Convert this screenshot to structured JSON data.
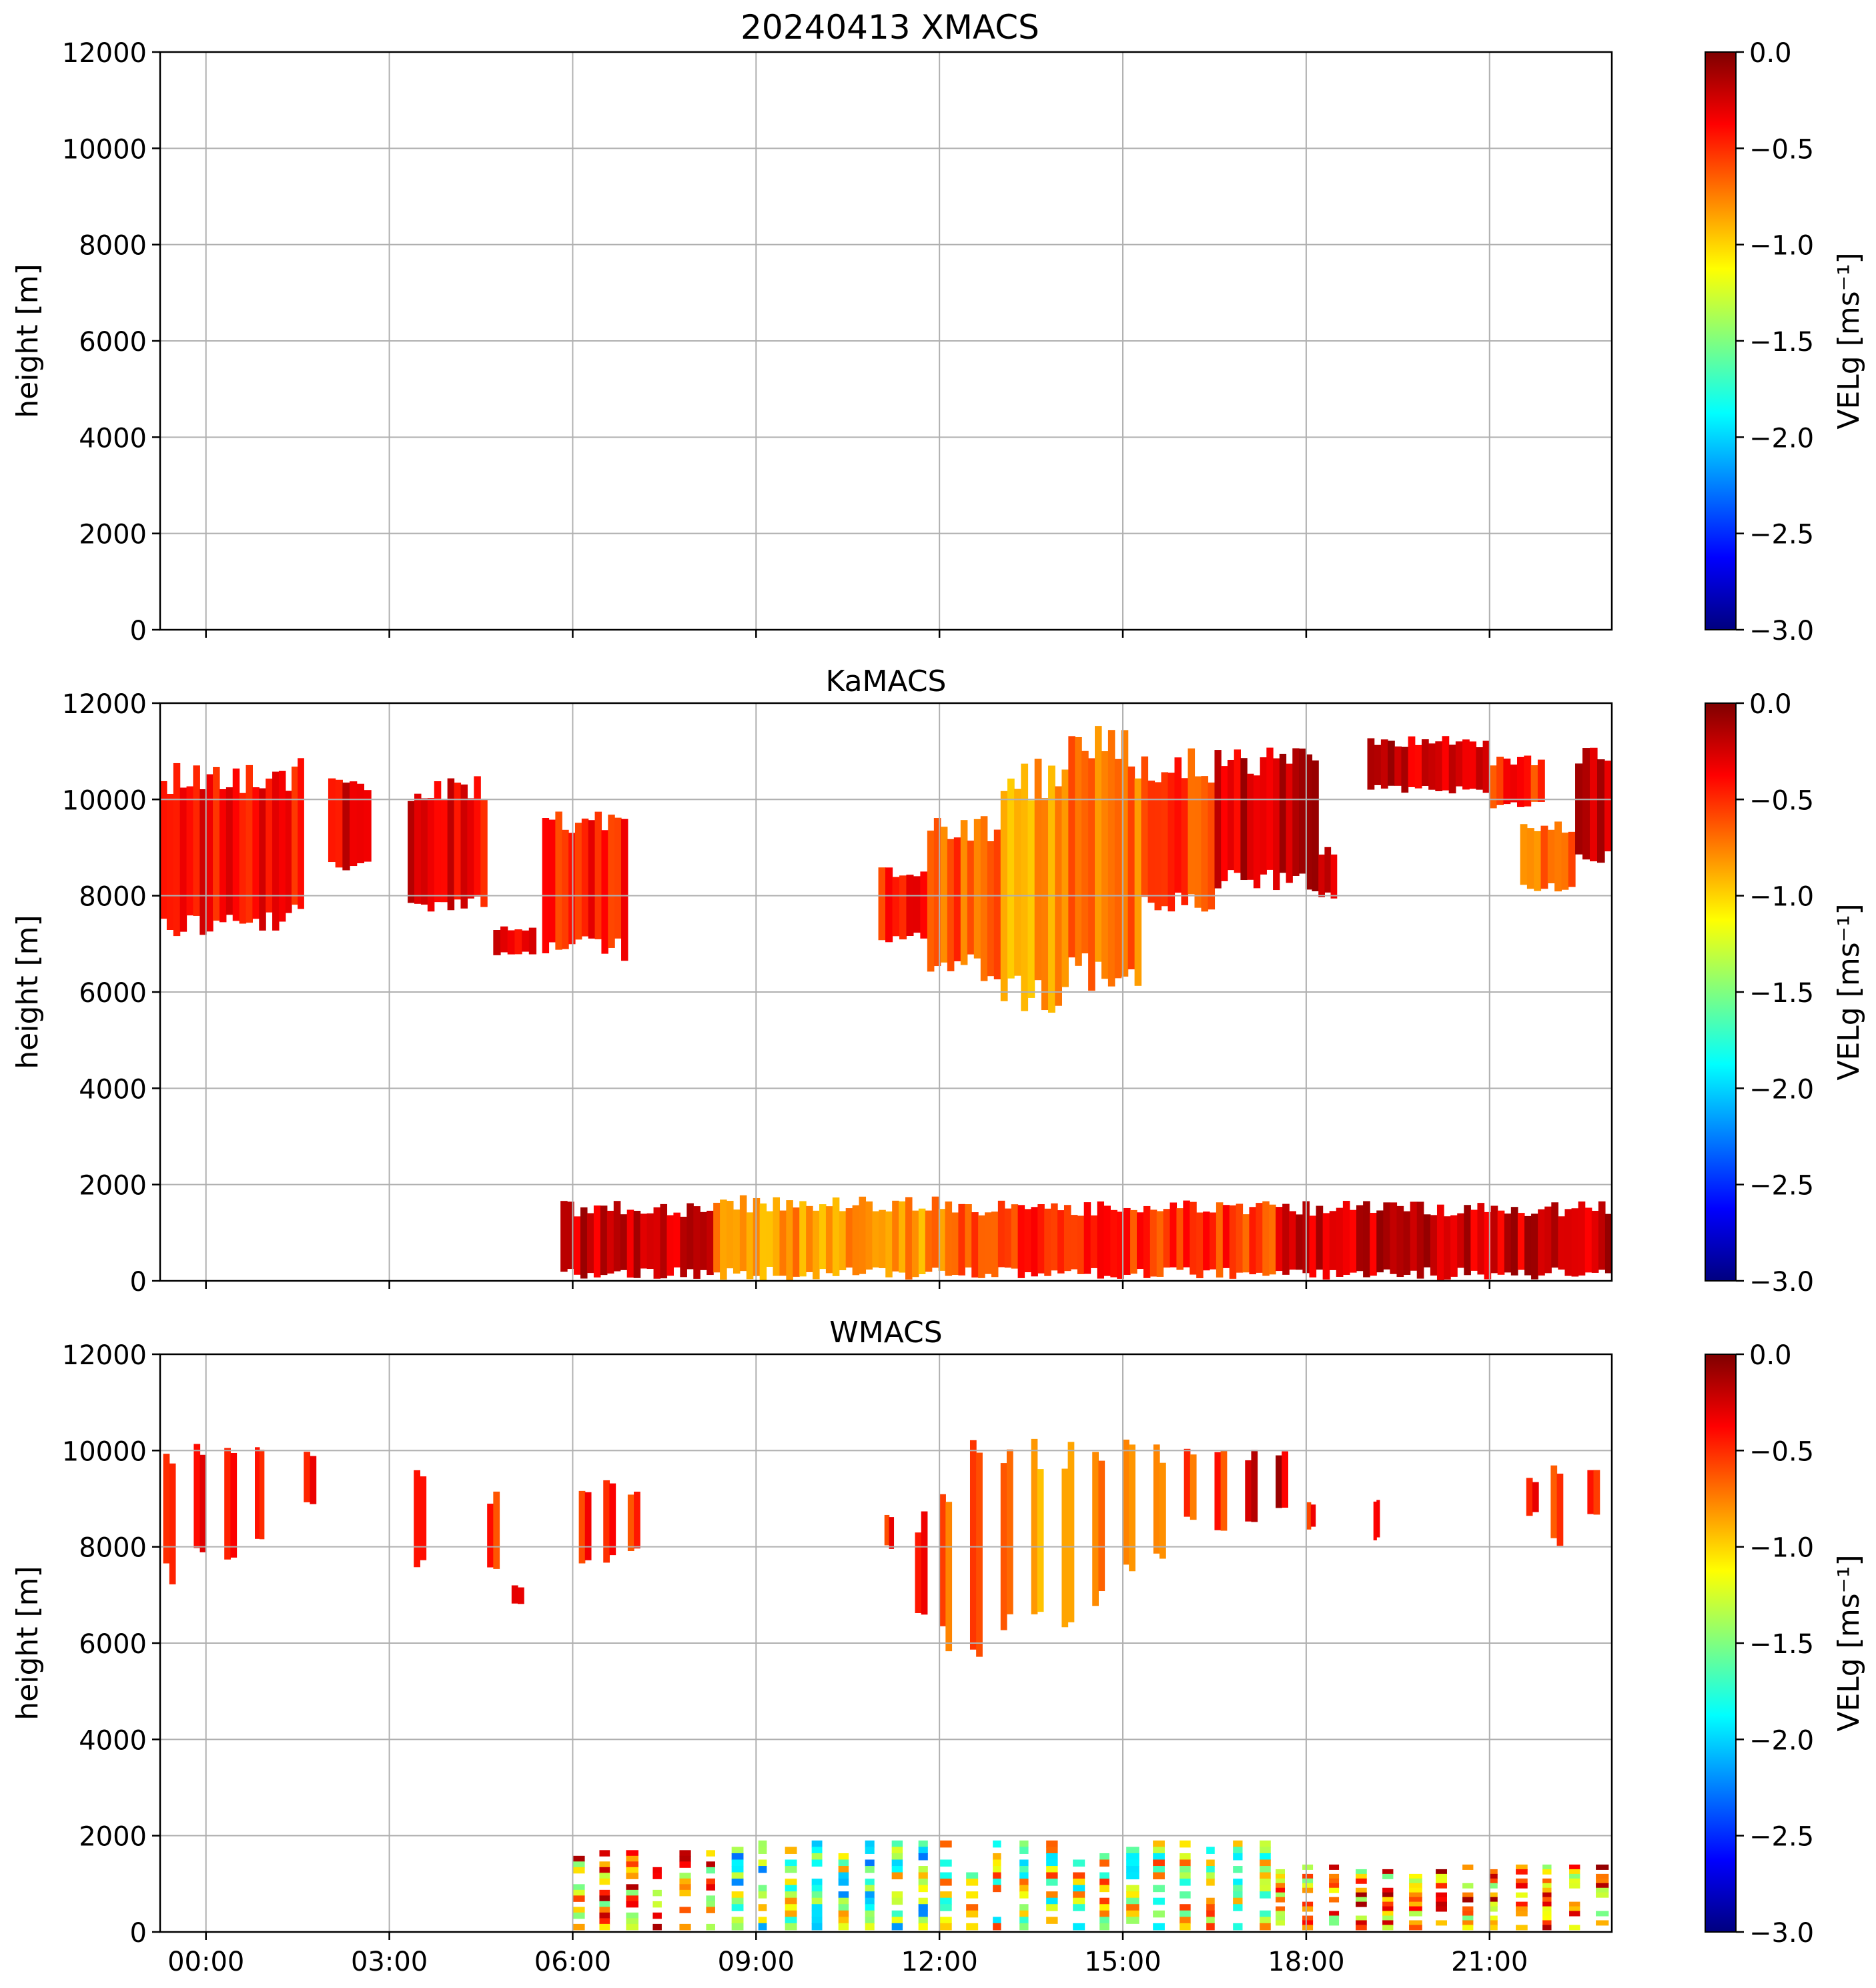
{
  "figure": {
    "title": "20240413 XMACS"
  },
  "chart_data": [
    {
      "type": "heatmap",
      "panel": "XMACS",
      "title": "20240413 XMACS",
      "xlabel": "",
      "ylabel": "height [m]",
      "xlim": [
        "23:00",
        "23:00"
      ],
      "ylim": [
        0,
        12000
      ],
      "yticks": [
        "0",
        "2000",
        "4000",
        "6000",
        "8000",
        "10000",
        "12000"
      ],
      "xticks": [],
      "grid": true,
      "colorbar": {
        "label": "VELg [ms⁻¹]",
        "range": [
          -3.0,
          0.0
        ],
        "colormap": "jet",
        "ticks": [
          "0.0",
          "−0.5",
          "−1.0",
          "−1.5",
          "−2.0",
          "−2.5",
          "−3.0"
        ]
      },
      "regions": []
    },
    {
      "type": "heatmap",
      "panel": "KaMACS",
      "title": "KaMACS",
      "xlabel": "",
      "ylabel": "height [m]",
      "ylim": [
        0,
        12000
      ],
      "yticks": [
        "0",
        "2000",
        "4000",
        "6000",
        "8000",
        "10000",
        "12000"
      ],
      "xticks": [],
      "grid": true,
      "colorbar": {
        "label": "VELg [ms⁻¹]",
        "range": [
          -3.0,
          0.0
        ],
        "colormap": "jet",
        "ticks": [
          "0.0",
          "−0.5",
          "−1.0",
          "−1.5",
          "−2.0",
          "−2.5",
          "−3.0"
        ]
      },
      "regions": [
        {
          "t0": -0.75,
          "t1": 1.3,
          "h0": 7400,
          "h1": 10500,
          "v": -0.2
        },
        {
          "t0": 1.3,
          "t1": 1.6,
          "h0": 7600,
          "h1": 10500,
          "v": -0.3
        },
        {
          "t0": 2.0,
          "t1": 2.7,
          "h0": 8600,
          "h1": 10400,
          "v": -0.15
        },
        {
          "t0": 3.3,
          "t1": 4.6,
          "h0": 7900,
          "h1": 10200,
          "v": -0.15
        },
        {
          "t0": 4.7,
          "t1": 5.4,
          "h0": 6800,
          "h1": 7300,
          "v": -0.1
        },
        {
          "t0": 5.5,
          "t1": 6.9,
          "h0": 6900,
          "h1": 9500,
          "v": -0.25
        },
        {
          "t0": 11.0,
          "t1": 11.8,
          "h0": 7100,
          "h1": 8500,
          "v": -0.25
        },
        {
          "t0": 11.8,
          "t1": 13.0,
          "h0": 6500,
          "h1": 9500,
          "v": -0.45
        },
        {
          "t0": 13.0,
          "t1": 14.0,
          "h0": 5900,
          "h1": 10500,
          "v": -0.65
        },
        {
          "t0": 14.0,
          "t1": 15.3,
          "h0": 6400,
          "h1": 11000,
          "v": -0.55
        },
        {
          "t0": 15.3,
          "t1": 16.5,
          "h0": 7800,
          "h1": 10700,
          "v": -0.35
        },
        {
          "t0": 16.5,
          "t1": 18.2,
          "h0": 8300,
          "h1": 10800,
          "v": -0.05
        },
        {
          "t0": 18.2,
          "t1": 18.5,
          "h0": 8000,
          "h1": 8900,
          "v": -0.1
        },
        {
          "t0": 19.0,
          "t1": 21.0,
          "h0": 10200,
          "h1": 11200,
          "v": -0.05
        },
        {
          "t0": 21.0,
          "t1": 21.9,
          "h0": 9900,
          "h1": 10800,
          "v": -0.3
        },
        {
          "t0": 21.5,
          "t1": 22.4,
          "h0": 8200,
          "h1": 9400,
          "v": -0.55
        },
        {
          "t0": 22.4,
          "t1": 23.0,
          "h0": 8700,
          "h1": 11000,
          "v": -0.1
        },
        {
          "t0": 5.8,
          "t1": 8.3,
          "h0": 150,
          "h1": 1500,
          "v": -0.05
        },
        {
          "t0": 8.3,
          "t1": 12.2,
          "h0": 150,
          "h1": 1600,
          "v": -0.6
        },
        {
          "t0": 12.2,
          "t1": 17.5,
          "h0": 150,
          "h1": 1500,
          "v": -0.35
        },
        {
          "t0": 17.5,
          "t1": 23.0,
          "h0": 150,
          "h1": 1500,
          "v": -0.05
        }
      ]
    },
    {
      "type": "heatmap",
      "panel": "WMACS",
      "title": "WMACS",
      "xlabel": "",
      "ylabel": "height [m]",
      "ylim": [
        0,
        12000
      ],
      "yticks": [
        "0",
        "2000",
        "4000",
        "6000",
        "8000",
        "10000",
        "12000"
      ],
      "xticks": [
        "00:00",
        "03:00",
        "06:00",
        "09:00",
        "12:00",
        "15:00",
        "18:00",
        "21:00"
      ],
      "xtick_hours": [
        0,
        3,
        6,
        9,
        12,
        15,
        18,
        21
      ],
      "grid": true,
      "colorbar": {
        "label": "VELg [ms⁻¹]",
        "range": [
          -3.0,
          0.0
        ],
        "colormap": "jet",
        "ticks": [
          "0.0",
          "−0.5",
          "−1.0",
          "−1.5",
          "−2.0",
          "−2.5",
          "−3.0"
        ]
      },
      "regions": [
        {
          "t0": -0.7,
          "t1": -0.5,
          "h0": 7400,
          "h1": 10000,
          "v": -0.3
        },
        {
          "t0": -0.2,
          "t1": 0.0,
          "h0": 7900,
          "h1": 10000,
          "v": -0.1
        },
        {
          "t0": 0.3,
          "t1": 0.5,
          "h0": 7800,
          "h1": 10000,
          "v": -0.2
        },
        {
          "t0": 0.8,
          "t1": 0.95,
          "h0": 8300,
          "h1": 9900,
          "v": -0.3
        },
        {
          "t0": 1.6,
          "t1": 1.8,
          "h0": 8900,
          "h1": 9900,
          "v": -0.2
        },
        {
          "t0": 3.4,
          "t1": 3.6,
          "h0": 7700,
          "h1": 9600,
          "v": -0.2
        },
        {
          "t0": 4.6,
          "t1": 4.8,
          "h0": 7500,
          "h1": 9000,
          "v": -0.3
        },
        {
          "t0": 5.0,
          "t1": 5.2,
          "h0": 6800,
          "h1": 7200,
          "v": -0.3
        },
        {
          "t0": 6.1,
          "t1": 6.3,
          "h0": 7700,
          "h1": 9300,
          "v": -0.3
        },
        {
          "t0": 6.5,
          "t1": 6.7,
          "h0": 7800,
          "h1": 9400,
          "v": -0.3
        },
        {
          "t0": 6.9,
          "t1": 7.1,
          "h0": 7900,
          "h1": 9200,
          "v": -0.4
        },
        {
          "t0": 11.1,
          "t1": 11.25,
          "h0": 8000,
          "h1": 8600,
          "v": -0.3
        },
        {
          "t0": 11.6,
          "t1": 11.8,
          "h0": 6600,
          "h1": 8500,
          "v": -0.3
        },
        {
          "t0": 12.0,
          "t1": 12.2,
          "h0": 6100,
          "h1": 9000,
          "v": -0.5
        },
        {
          "t0": 12.5,
          "t1": 12.7,
          "h0": 6000,
          "h1": 10000,
          "v": -0.5
        },
        {
          "t0": 13.0,
          "t1": 13.2,
          "h0": 6400,
          "h1": 10000,
          "v": -0.6
        },
        {
          "t0": 13.5,
          "t1": 13.7,
          "h0": 6500,
          "h1": 10000,
          "v": -0.6
        },
        {
          "t0": 14.0,
          "t1": 14.2,
          "h0": 6600,
          "h1": 10000,
          "v": -0.7
        },
        {
          "t0": 14.5,
          "t1": 14.7,
          "h0": 7000,
          "h1": 10000,
          "v": -0.6
        },
        {
          "t0": 15.0,
          "t1": 15.2,
          "h0": 7600,
          "h1": 10000,
          "v": -0.5
        },
        {
          "t0": 15.5,
          "t1": 15.7,
          "h0": 7900,
          "h1": 9900,
          "v": -0.6
        },
        {
          "t0": 16.0,
          "t1": 16.2,
          "h0": 8600,
          "h1": 9900,
          "v": -0.4
        },
        {
          "t0": 16.5,
          "t1": 16.7,
          "h0": 8300,
          "h1": 10000,
          "v": -0.3
        },
        {
          "t0": 17.0,
          "t1": 17.2,
          "h0": 8500,
          "h1": 9900,
          "v": -0.1
        },
        {
          "t0": 17.5,
          "t1": 17.7,
          "h0": 8900,
          "h1": 10000,
          "v": -0.05
        },
        {
          "t0": 18.0,
          "t1": 18.15,
          "h0": 8400,
          "h1": 8900,
          "v": -0.3
        },
        {
          "t0": 19.1,
          "t1": 19.2,
          "h0": 8200,
          "h1": 8900,
          "v": -0.3
        },
        {
          "t0": 21.6,
          "t1": 21.8,
          "h0": 8700,
          "h1": 9400,
          "v": -0.3
        },
        {
          "t0": 22.0,
          "t1": 22.2,
          "h0": 8100,
          "h1": 9700,
          "v": -0.3
        },
        {
          "t0": 22.6,
          "t1": 22.8,
          "h0": 8600,
          "h1": 9500,
          "v": -0.4
        },
        {
          "t0": 6.0,
          "t1": 8.6,
          "h0": 50,
          "h1": 1700,
          "v": -0.1,
          "stripes": true
        },
        {
          "t0": 8.6,
          "t1": 12.0,
          "h0": 50,
          "h1": 1900,
          "v": -0.8,
          "stripes": true
        },
        {
          "t0": 12.0,
          "t1": 17.5,
          "h0": 50,
          "h1": 1900,
          "v": -0.5,
          "stripes": true
        },
        {
          "t0": 17.5,
          "t1": 23.0,
          "h0": 50,
          "h1": 1400,
          "v": -0.05,
          "stripes": true
        }
      ]
    }
  ]
}
